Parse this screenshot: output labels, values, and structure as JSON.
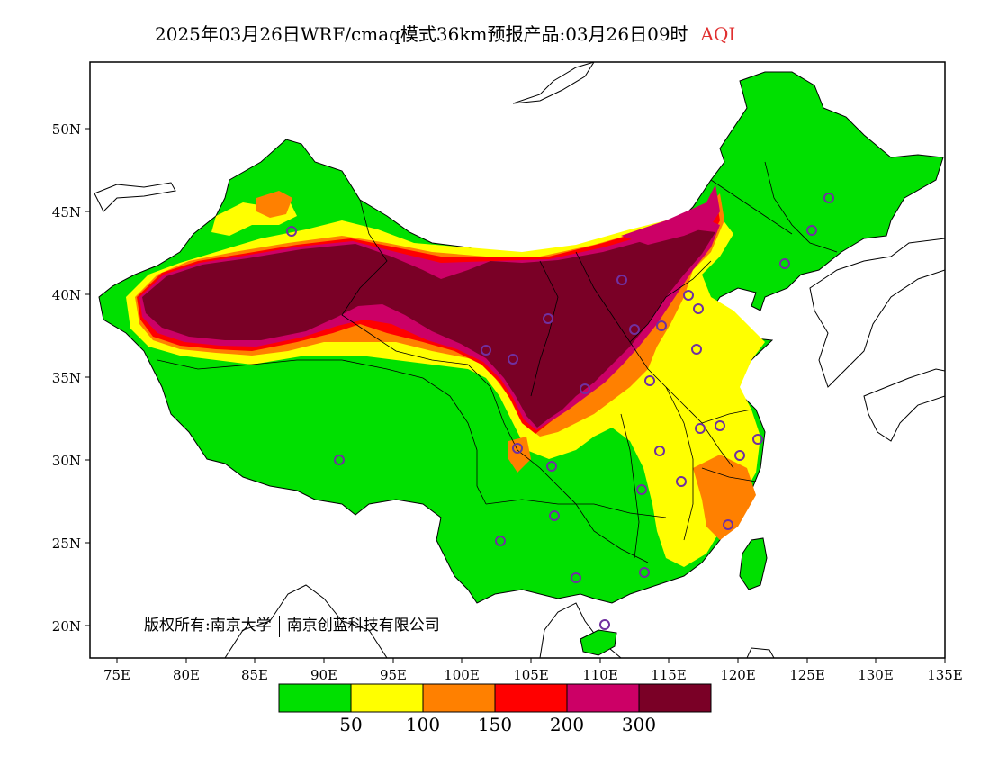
{
  "title": {
    "text": "2025年03月26日WRF/cmaq模式36km预报产品:03月26日09时",
    "variable": "AQI"
  },
  "map": {
    "lat_ticks": [
      "50N",
      "45N",
      "40N",
      "35N",
      "30N",
      "25N",
      "20N"
    ],
    "lon_ticks": [
      "75E",
      "80E",
      "85E",
      "90E",
      "95E",
      "100E",
      "105E",
      "110E",
      "115E",
      "120E",
      "125E",
      "130E",
      "135E"
    ],
    "copyright_left": "版权所有:南京大学",
    "copyright_right": "南京创蓝科技有限公司",
    "colors": {
      "good": "#00e000",
      "moderate": "#ffff00",
      "sensitive": "#ff8000",
      "unhealthy": "#ff0000",
      "very_unhealthy": "#cc0066",
      "hazardous": "#7a0026",
      "station": "#7030a0"
    }
  },
  "legend": {
    "colors": [
      "#00e000",
      "#ffff00",
      "#ff8000",
      "#ff0000",
      "#cc0066",
      "#7a0026"
    ],
    "labels": [
      "50",
      "100",
      "150",
      "200",
      "300"
    ]
  }
}
